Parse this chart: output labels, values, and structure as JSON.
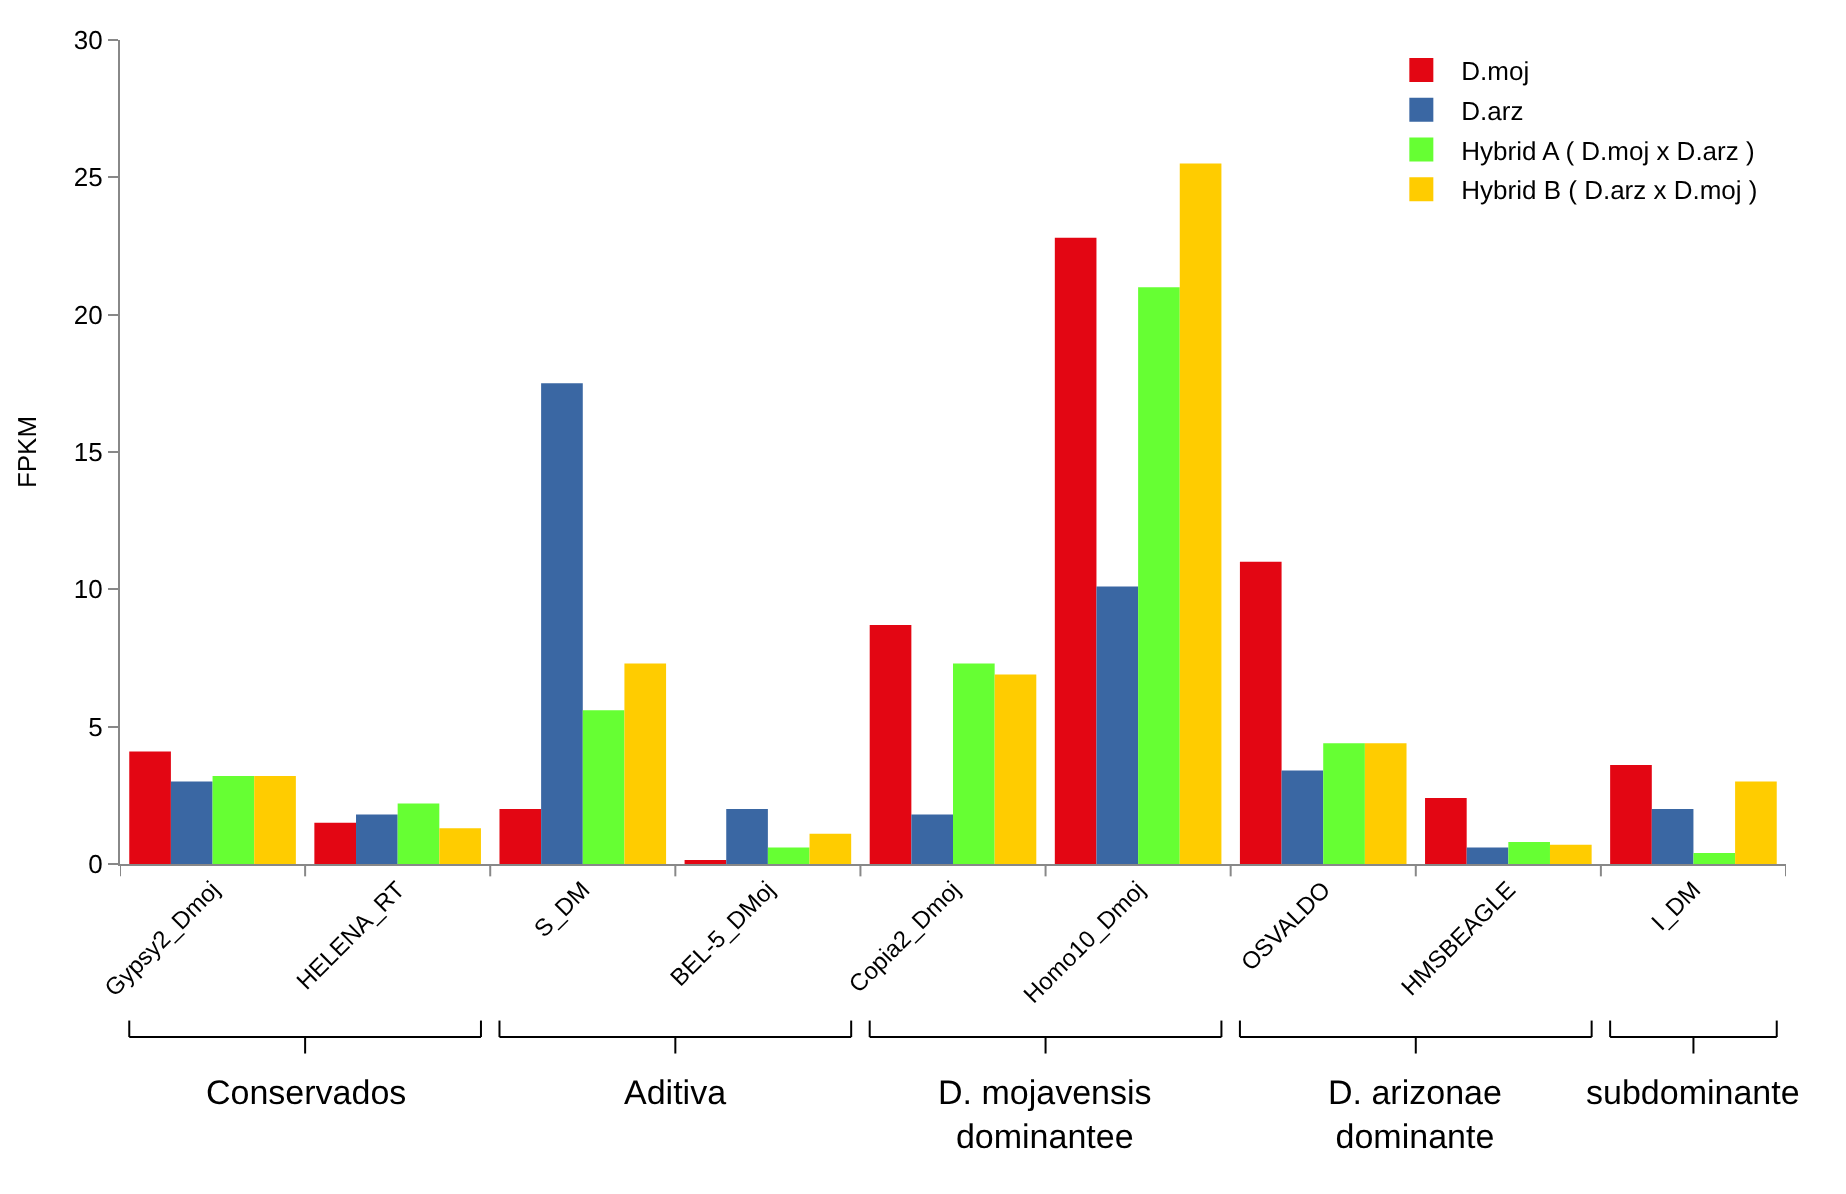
{
  "chart_data": {
    "type": "bar",
    "ylabel": "FPKM",
    "categories": [
      "Gypsy2_Dmoj",
      "HELENA_RT",
      "S_DM",
      "BEL-5_DMoj",
      "Copia2_Dmoj",
      "Homo10_Dmoj",
      "OSVALDO",
      "HMSBEAGLE",
      "I_DM"
    ],
    "series": [
      {
        "name": "D.moj",
        "color": "#e30613",
        "values": [
          4.1,
          1.5,
          2.0,
          0.1,
          8.7,
          22.8,
          11.0,
          2.4,
          3.6
        ]
      },
      {
        "name": "D.arz",
        "color": "#3a67a3",
        "values": [
          3.0,
          1.8,
          17.5,
          2.0,
          1.8,
          10.1,
          3.4,
          0.6,
          2.0
        ]
      },
      {
        "name": "Hybrid A ( D.moj x D.arz )",
        "color": "#66ff33",
        "values": [
          3.2,
          2.2,
          5.6,
          0.6,
          7.3,
          21.0,
          4.4,
          0.8,
          0.4
        ]
      },
      {
        "name": "Hybrid B ( D.arz x D.moj )",
        "color": "#ffcc00",
        "values": [
          3.2,
          1.3,
          7.3,
          1.1,
          6.9,
          25.5,
          4.4,
          0.7,
          3.0
        ]
      }
    ],
    "ylim": [
      0,
      30
    ],
    "yticks": [
      0,
      5,
      10,
      15,
      20,
      25,
      30
    ],
    "legend": "top right",
    "annotations": [
      "Conservados",
      "Aditiva",
      "D. mojavensis\ndominantee",
      "D. arizonae\ndominante",
      "subdominante"
    ]
  }
}
